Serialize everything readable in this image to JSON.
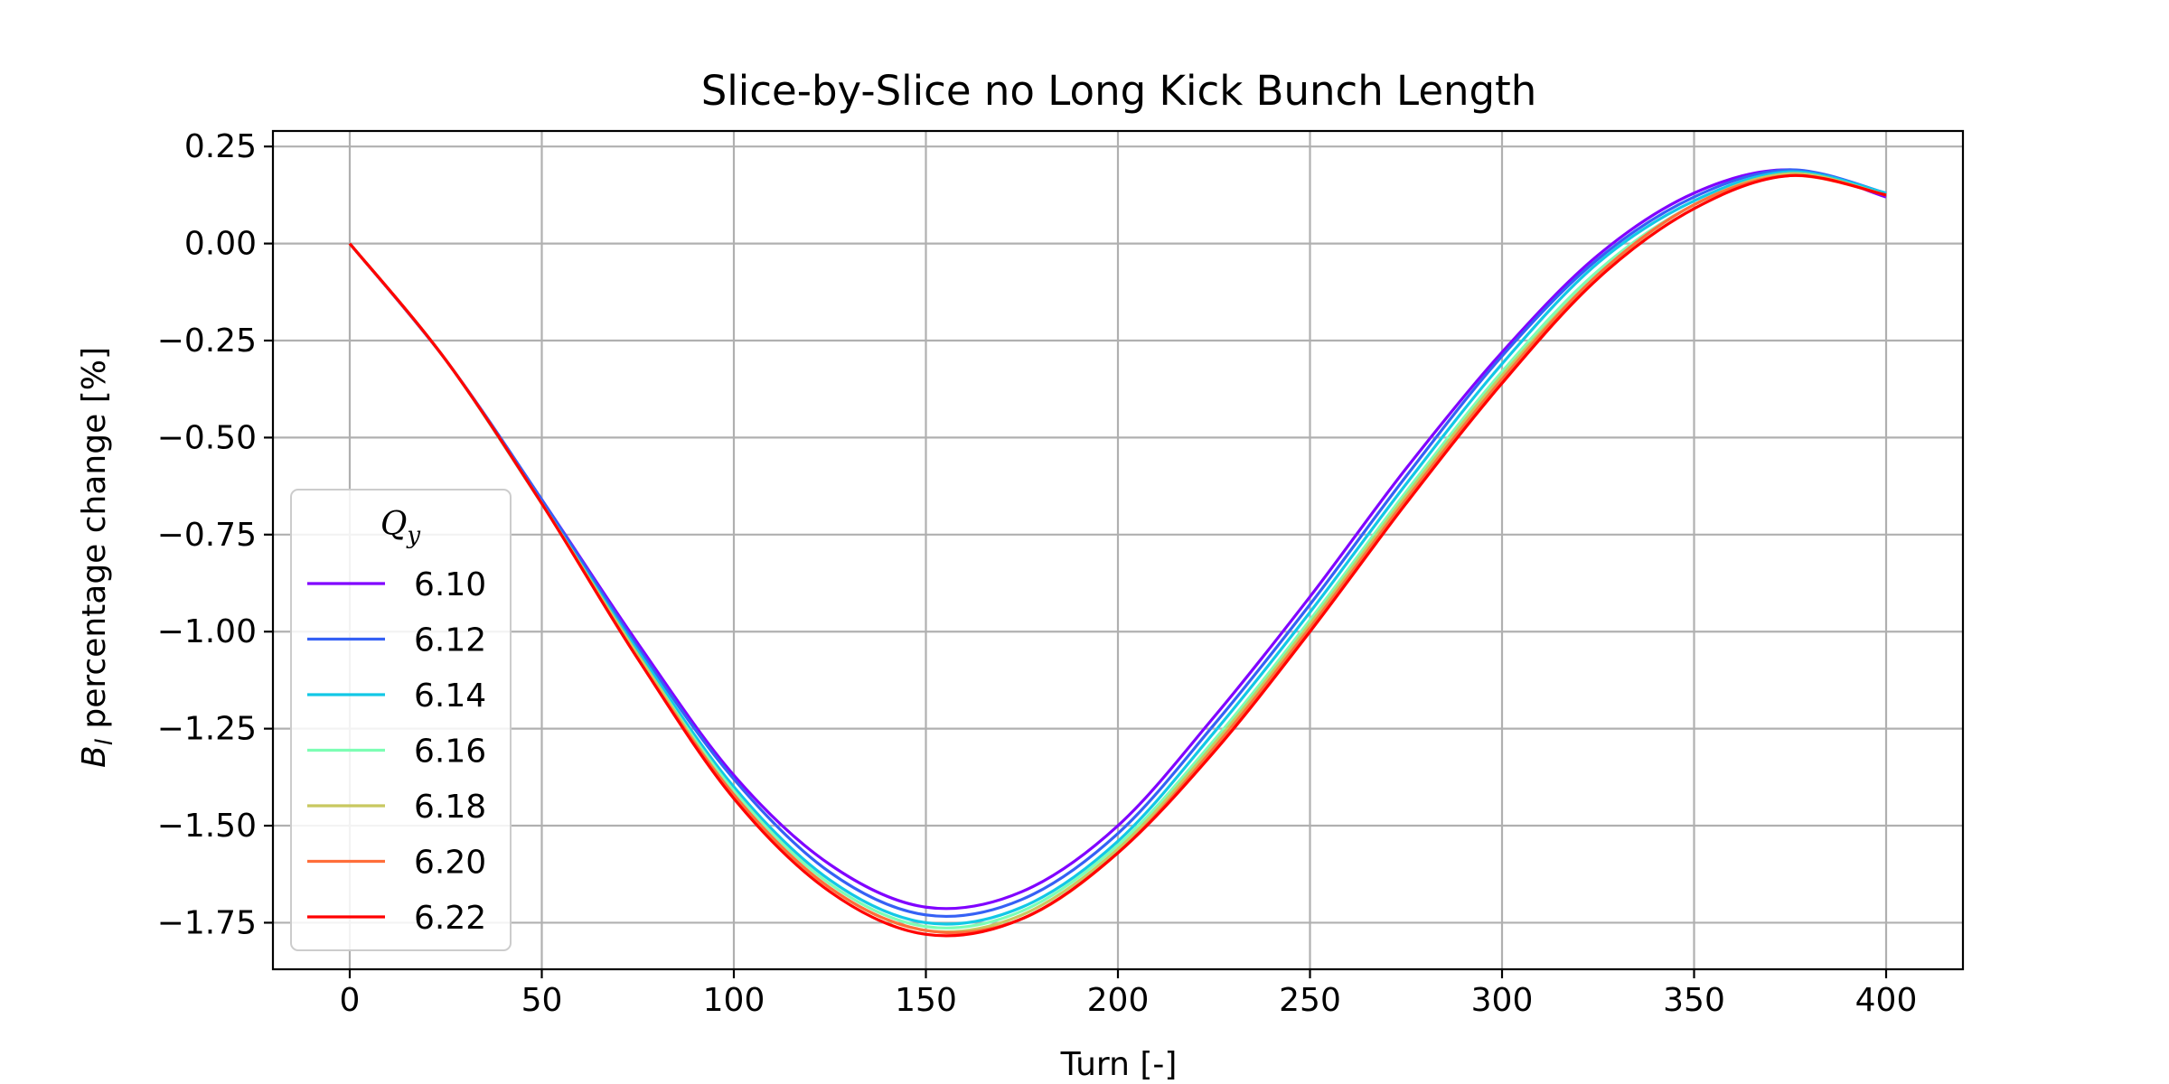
{
  "chart_data": {
    "type": "line",
    "title": "Slice-by-Slice no Long Kick Bunch Length",
    "xlabel": "Turn [-]",
    "ylabel": {
      "symbol": "B",
      "subscript": "l",
      "text": " percentage change [%]"
    },
    "xlim": [
      -20,
      420
    ],
    "ylim": [
      -1.87,
      0.29
    ],
    "xticks": [
      0,
      50,
      100,
      150,
      200,
      250,
      300,
      350,
      400
    ],
    "xtick_labels": [
      "0",
      "50",
      "100",
      "150",
      "200",
      "250",
      "300",
      "350",
      "400"
    ],
    "yticks": [
      0.25,
      0.0,
      -0.25,
      -0.5,
      -0.75,
      -1.0,
      -1.25,
      -1.5,
      -1.75
    ],
    "ytick_labels": [
      "0.25",
      "0.00",
      "−0.25",
      "−0.50",
      "−0.75",
      "−1.00",
      "−1.25",
      "−1.50",
      "−1.75"
    ],
    "grid": true,
    "legend": {
      "placement": "lower-left",
      "title_symbol": "Q",
      "title_subscript": "y"
    },
    "x": [
      0,
      25,
      50,
      75,
      100,
      125,
      150,
      175,
      200,
      225,
      250,
      275,
      300,
      325,
      350,
      375,
      400
    ],
    "series": [
      {
        "name": "6.10",
        "color": "#8000ff",
        "values": [
          0.0,
          -0.3,
          -0.66,
          -1.03,
          -1.37,
          -1.6,
          -1.71,
          -1.67,
          -1.5,
          -1.22,
          -0.91,
          -0.58,
          -0.28,
          -0.03,
          0.13,
          0.19,
          0.12
        ]
      },
      {
        "name": "6.12",
        "color": "#3561f5",
        "values": [
          0.0,
          -0.3,
          -0.66,
          -1.04,
          -1.38,
          -1.62,
          -1.73,
          -1.69,
          -1.52,
          -1.24,
          -0.93,
          -0.6,
          -0.29,
          -0.04,
          0.12,
          0.19,
          0.13
        ]
      },
      {
        "name": "6.14",
        "color": "#12c8e6",
        "values": [
          0.0,
          -0.3,
          -0.67,
          -1.05,
          -1.4,
          -1.64,
          -1.75,
          -1.71,
          -1.54,
          -1.26,
          -0.95,
          -0.62,
          -0.31,
          -0.05,
          0.11,
          0.185,
          0.13
        ]
      },
      {
        "name": "6.16",
        "color": "#7dfeb4",
        "values": [
          0.0,
          -0.3,
          -0.67,
          -1.06,
          -1.41,
          -1.65,
          -1.76,
          -1.72,
          -1.55,
          -1.28,
          -0.97,
          -0.64,
          -0.33,
          -0.07,
          0.1,
          0.18,
          0.125
        ]
      },
      {
        "name": "6.18",
        "color": "#c8c85f",
        "values": [
          0.0,
          -0.3,
          -0.67,
          -1.06,
          -1.42,
          -1.66,
          -1.77,
          -1.73,
          -1.56,
          -1.29,
          -0.98,
          -0.65,
          -0.34,
          -0.08,
          0.1,
          0.18,
          0.125
        ]
      },
      {
        "name": "6.20",
        "color": "#ff6e3a",
        "values": [
          0.0,
          -0.3,
          -0.67,
          -1.07,
          -1.42,
          -1.66,
          -1.77,
          -1.74,
          -1.57,
          -1.3,
          -0.99,
          -0.66,
          -0.35,
          -0.08,
          0.1,
          0.175,
          0.125
        ]
      },
      {
        "name": "6.22",
        "color": "#ff0000",
        "values": [
          0.0,
          -0.3,
          -0.67,
          -1.07,
          -1.43,
          -1.67,
          -1.78,
          -1.74,
          -1.57,
          -1.31,
          -1.0,
          -0.67,
          -0.36,
          -0.09,
          0.09,
          0.175,
          0.125
        ]
      }
    ]
  }
}
